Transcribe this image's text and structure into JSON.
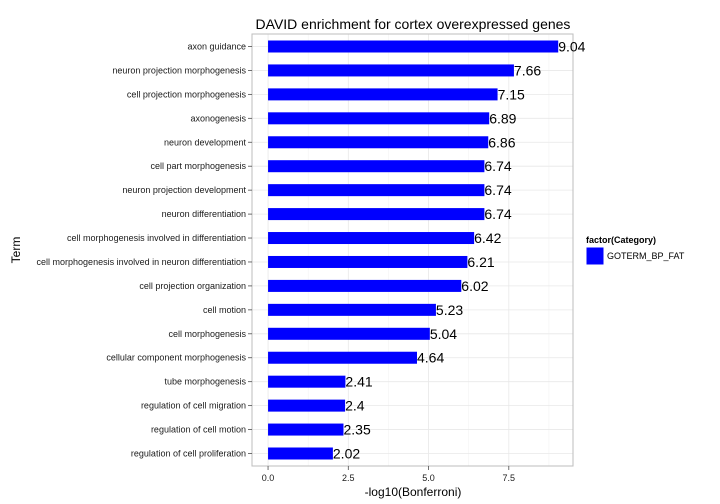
{
  "chart_data": {
    "type": "bar",
    "orientation": "horizontal",
    "title": "DAVID enrichment for cortex overexpressed genes",
    "xlabel": "-log10(Bonferroni)",
    "ylabel": "Term",
    "xlim": [
      -0.5,
      9.5
    ],
    "xticks": [
      0,
      2.5,
      5,
      7.5
    ],
    "xtick_labels": [
      "0.0",
      "2.5",
      "5.0",
      "7.5"
    ],
    "grid": true,
    "bar_color": "#0000ff",
    "legend": {
      "title": "factor(Category)",
      "position": "right",
      "entries": [
        {
          "label": "GOTERM_BP_FAT",
          "color": "#0000ff"
        }
      ]
    },
    "categories": [
      "axon guidance",
      "neuron projection morphogenesis",
      "cell projection morphogenesis",
      "axonogenesis",
      "neuron development",
      "cell part morphogenesis",
      "neuron projection development",
      "neuron differentiation",
      "cell morphogenesis involved in differentiation",
      "cell morphogenesis involved in neuron differentiation",
      "cell projection organization",
      "cell motion",
      "cell morphogenesis",
      "cellular component morphogenesis",
      "tube morphogenesis",
      "regulation of cell migration",
      "regulation of cell motion",
      "regulation of cell proliferation"
    ],
    "values": [
      9.04,
      7.66,
      7.15,
      6.89,
      6.86,
      6.74,
      6.74,
      6.74,
      6.42,
      6.21,
      6.02,
      5.23,
      5.04,
      4.64,
      2.41,
      2.4,
      2.35,
      2.02
    ],
    "data_labels": [
      "9.04",
      "7.66",
      "7.15",
      "6.89",
      "6.86",
      "6.74",
      "6.74",
      "6.74",
      "6.42",
      "6.21",
      "6.02",
      "5.23",
      "5.04",
      "4.64",
      "2.41",
      "2.4",
      "2.35",
      "2.02"
    ]
  }
}
